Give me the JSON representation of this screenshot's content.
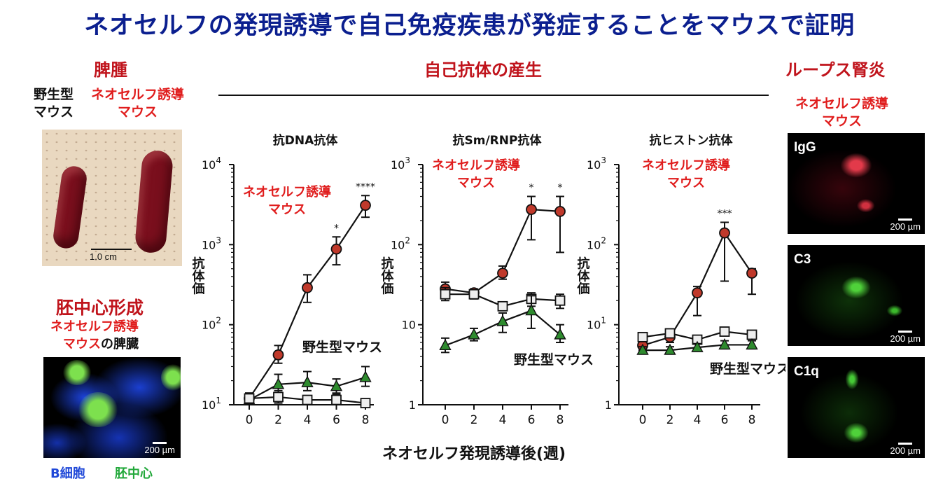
{
  "header": {
    "title": "ネオセルフの発現誘導で自己免疫疾患が発症することをマウスで証明"
  },
  "left": {
    "spleen_title": "脾腫",
    "wt_label_line1": "野生型",
    "wt_label_line2": "マウス",
    "neo_label_line1": "ネオセルフ誘導",
    "neo_label_line2": "マウス",
    "spleen_scale": "1.0 cm",
    "gc_title": "胚中心形成",
    "gc_sub_line1": "ネオセルフ誘導",
    "gc_sub_line2_red": "マウス",
    "gc_sub_line2_black": "の脾臓",
    "gc_scale": "200 µm",
    "legend_b": "B細胞",
    "legend_gc": "胚中心"
  },
  "middle": {
    "section_title": "自己抗体の産生",
    "x_title": "ネオセルフ発現誘導後(週)"
  },
  "right": {
    "section_title": "ループス腎炎",
    "neo_line1": "ネオセルフ誘導",
    "neo_line2": "マウス",
    "panels": [
      {
        "label": "IgG",
        "scale": "200 µm"
      },
      {
        "label": "C3",
        "scale": "200 µm"
      },
      {
        "label": "C1q",
        "scale": "200 µm"
      }
    ]
  },
  "colors": {
    "neo": "#c0392b",
    "wt": "#e8e8e8",
    "third": "#2e8b2e",
    "title": "#0b1f8f",
    "accent": "#c0141c"
  },
  "chart_data": [
    {
      "type": "line",
      "title": "抗DNA抗体",
      "ylabel": "抗体価",
      "yscale": "log",
      "ylim": [
        10,
        10000
      ],
      "yticks": [
        {
          "v": 10,
          "base": "10",
          "exp": "1"
        },
        {
          "v": 100,
          "base": "10",
          "exp": "2"
        },
        {
          "v": 1000,
          "base": "10",
          "exp": "3"
        },
        {
          "v": 10000,
          "base": "10",
          "exp": "4"
        }
      ],
      "x": [
        0,
        2,
        4,
        6,
        8
      ],
      "series": [
        {
          "name": "ネオセルフ誘導マウス",
          "marker": "circle",
          "values": [
            12,
            42,
            290,
            880,
            3100
          ],
          "err": [
            [
              10,
              14
            ],
            [
              33,
              55
            ],
            [
              190,
              420
            ],
            [
              560,
              1250
            ],
            [
              2200,
              4100
            ]
          ]
        },
        {
          "name": "緑",
          "marker": "triangle",
          "values": [
            11.5,
            18,
            19,
            17,
            22
          ],
          "err": [
            [
              10.5,
              13
            ],
            [
              14,
              24
            ],
            [
              15,
              26
            ],
            [
              14,
              21
            ],
            [
              17,
              30
            ]
          ]
        },
        {
          "name": "野生型マウス",
          "marker": "square",
          "values": [
            12,
            12.5,
            11.5,
            11.5,
            10.5
          ],
          "err": [
            [
              10.5,
              14
            ],
            [
              10.5,
              15
            ],
            [
              10,
              13
            ],
            [
              10,
              13.5
            ],
            [
              10,
              11.5
            ]
          ]
        }
      ],
      "annotations": [
        {
          "x": 6,
          "text": "*"
        },
        {
          "x": 8,
          "text": "****"
        }
      ],
      "neo_label": [
        "ネオセルフ誘導",
        "マウス"
      ],
      "wt_label": "野生型マウス"
    },
    {
      "type": "line",
      "title": "抗Sm/RNP抗体",
      "ylabel": "抗体価",
      "yscale": "log",
      "ylim": [
        1,
        1000
      ],
      "yticks": [
        {
          "v": 1,
          "base": "1",
          "exp": ""
        },
        {
          "v": 10,
          "base": "10",
          "exp": ""
        },
        {
          "v": 100,
          "base": "10",
          "exp": "2"
        },
        {
          "v": 1000,
          "base": "10",
          "exp": "3"
        }
      ],
      "x": [
        0,
        2,
        4,
        6,
        8
      ],
      "series": [
        {
          "name": "ネオセルフ誘導マウス",
          "marker": "circle",
          "values": [
            28,
            25,
            44,
            275,
            260
          ],
          "err": [
            [
              24,
              34
            ],
            [
              22,
              28
            ],
            [
              37,
              54
            ],
            [
              115,
              400
            ],
            [
              80,
              400
            ]
          ]
        },
        {
          "name": "野生型マウス",
          "marker": "square",
          "values": [
            24,
            24,
            17,
            21,
            20
          ],
          "err": [
            [
              20,
              29
            ],
            [
              21,
              27
            ],
            [
              15,
              19
            ],
            [
              17,
              25
            ],
            [
              16,
              24
            ]
          ]
        },
        {
          "name": "緑",
          "marker": "triangle",
          "values": [
            5.5,
            7.5,
            11,
            15,
            7.5
          ],
          "err": [
            [
              4.5,
              6.8
            ],
            [
              6.3,
              9
            ],
            [
              8,
              14
            ],
            [
              9,
              23
            ],
            [
              6,
              10
            ]
          ]
        }
      ],
      "annotations": [
        {
          "x": 6,
          "text": "*"
        },
        {
          "x": 8,
          "text": "*"
        }
      ],
      "neo_label": [
        "ネオセルフ誘導",
        "マウス"
      ],
      "wt_label": "野生型マウス"
    },
    {
      "type": "line",
      "title": "抗ヒストン抗体",
      "ylabel": "抗体価",
      "yscale": "log",
      "ylim": [
        1,
        1000
      ],
      "yticks": [
        {
          "v": 1,
          "base": "1",
          "exp": ""
        },
        {
          "v": 10,
          "base": "10",
          "exp": "1"
        },
        {
          "v": 100,
          "base": "10",
          "exp": "2"
        },
        {
          "v": 1000,
          "base": "10",
          "exp": "3"
        }
      ],
      "x": [
        0,
        2,
        4,
        6,
        8
      ],
      "series": [
        {
          "name": "ネオセルフ誘導マウス",
          "marker": "circle",
          "values": [
            5.5,
            7,
            25,
            140,
            44
          ],
          "err": [
            [
              4.8,
              6.5
            ],
            [
              6,
              8.5
            ],
            [
              13,
              30
            ],
            [
              35,
              190
            ],
            [
              24,
              50
            ]
          ]
        },
        {
          "name": "野生型マウス",
          "marker": "square",
          "values": [
            7,
            7.8,
            6.5,
            8.2,
            7.5
          ],
          "err": [
            [
              6.3,
              7.8
            ],
            [
              7,
              8.5
            ],
            [
              5.9,
              7.2
            ],
            [
              7.4,
              9
            ],
            [
              6.8,
              8.2
            ]
          ]
        },
        {
          "name": "緑",
          "marker": "triangle",
          "values": [
            4.8,
            4.8,
            5.2,
            5.6,
            5.6
          ],
          "err": [
            [
              4.3,
              5.3
            ],
            [
              4.3,
              5.3
            ],
            [
              4.7,
              5.8
            ],
            [
              5,
              6.3
            ],
            [
              5,
              6.3
            ]
          ]
        }
      ],
      "annotations": [
        {
          "x": 6,
          "text": "***"
        }
      ],
      "neo_label": [
        "ネオセルフ誘導",
        "マウス"
      ],
      "wt_label": "野生型マウス"
    }
  ]
}
